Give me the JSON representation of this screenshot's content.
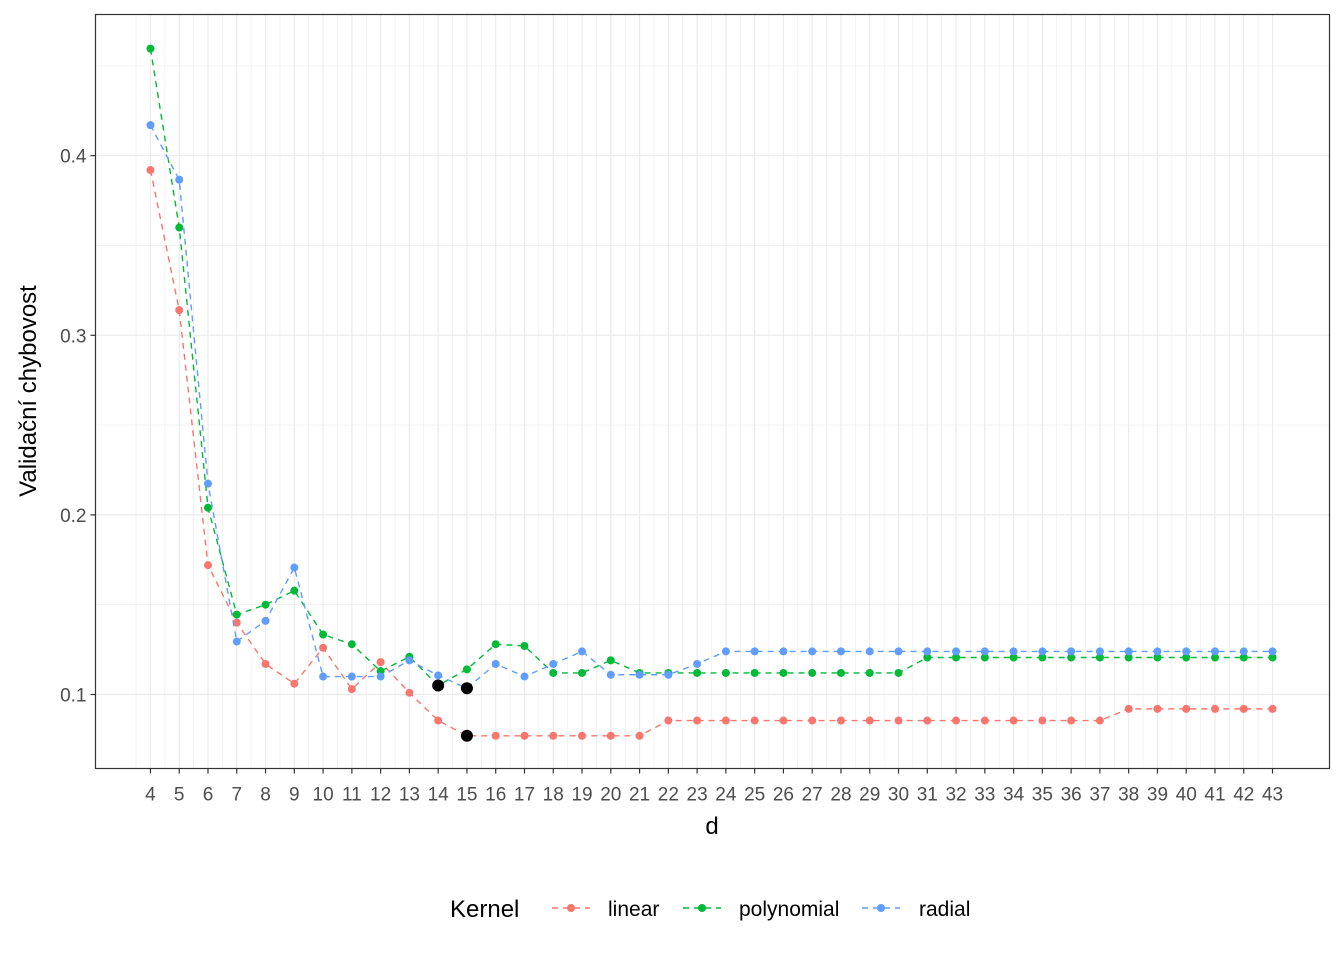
{
  "chart_data": {
    "type": "line",
    "title": "",
    "xlabel": "d",
    "ylabel": "Validační chybovost",
    "x": [
      4,
      5,
      6,
      7,
      8,
      9,
      10,
      11,
      12,
      13,
      14,
      15,
      16,
      17,
      18,
      19,
      20,
      21,
      22,
      23,
      24,
      25,
      26,
      27,
      28,
      29,
      30,
      31,
      32,
      33,
      34,
      35,
      36,
      37,
      38,
      39,
      40,
      41,
      42,
      43
    ],
    "xlim": [
      2.09,
      44.98
    ],
    "ylim": [
      0.0588,
      0.4786
    ],
    "y_ticks": [
      0.1,
      0.2,
      0.3,
      0.4
    ],
    "y_tick_labels": [
      "0.1",
      "0.2",
      "0.3",
      "0.4"
    ],
    "grid": true,
    "legend": {
      "title": "Kernel",
      "position": "bottom"
    },
    "series": [
      {
        "name": "linear",
        "color": "#F8766D",
        "values": [
          0.392,
          0.314,
          0.172,
          0.14,
          0.117,
          0.106,
          0.126,
          0.103,
          0.118,
          0.101,
          0.0855,
          0.077,
          0.077,
          0.077,
          0.077,
          0.077,
          0.077,
          0.077,
          0.0855,
          0.0855,
          0.0855,
          0.0855,
          0.0855,
          0.0855,
          0.0855,
          0.0855,
          0.0855,
          0.0855,
          0.0855,
          0.0855,
          0.0855,
          0.0855,
          0.0855,
          0.0855,
          0.092,
          0.092,
          0.092,
          0.092,
          0.092,
          0.092
        ]
      },
      {
        "name": "polynomial",
        "color": "#00BA38",
        "values": [
          0.4596,
          0.36,
          0.204,
          0.1445,
          0.15,
          0.1578,
          0.1334,
          0.128,
          0.113,
          0.121,
          0.105,
          0.114,
          0.128,
          0.127,
          0.112,
          0.112,
          0.119,
          0.112,
          0.112,
          0.112,
          0.112,
          0.112,
          0.112,
          0.112,
          0.112,
          0.112,
          0.112,
          0.1206,
          0.1206,
          0.1206,
          0.1206,
          0.1206,
          0.1206,
          0.1206,
          0.1206,
          0.1206,
          0.1206,
          0.1206,
          0.1206,
          0.1206
        ]
      },
      {
        "name": "radial",
        "color": "#619CFF",
        "values": [
          0.417,
          0.3866,
          0.2174,
          0.1295,
          0.141,
          0.1707,
          0.11,
          0.11,
          0.11,
          0.119,
          0.1106,
          0.1035,
          0.117,
          0.11,
          0.117,
          0.124,
          0.111,
          0.111,
          0.111,
          0.117,
          0.124,
          0.124,
          0.124,
          0.124,
          0.124,
          0.124,
          0.124,
          0.124,
          0.124,
          0.124,
          0.124,
          0.124,
          0.124,
          0.124,
          0.124,
          0.124,
          0.124,
          0.124,
          0.124,
          0.124
        ]
      }
    ],
    "highlighted_minima": [
      {
        "kernel": "linear",
        "x": 15,
        "y": 0.077
      },
      {
        "kernel": "polynomial",
        "x": 14,
        "y": 0.105
      },
      {
        "kernel": "radial",
        "x": 15,
        "y": 0.1035
      }
    ],
    "highlight_color": "#000000"
  }
}
